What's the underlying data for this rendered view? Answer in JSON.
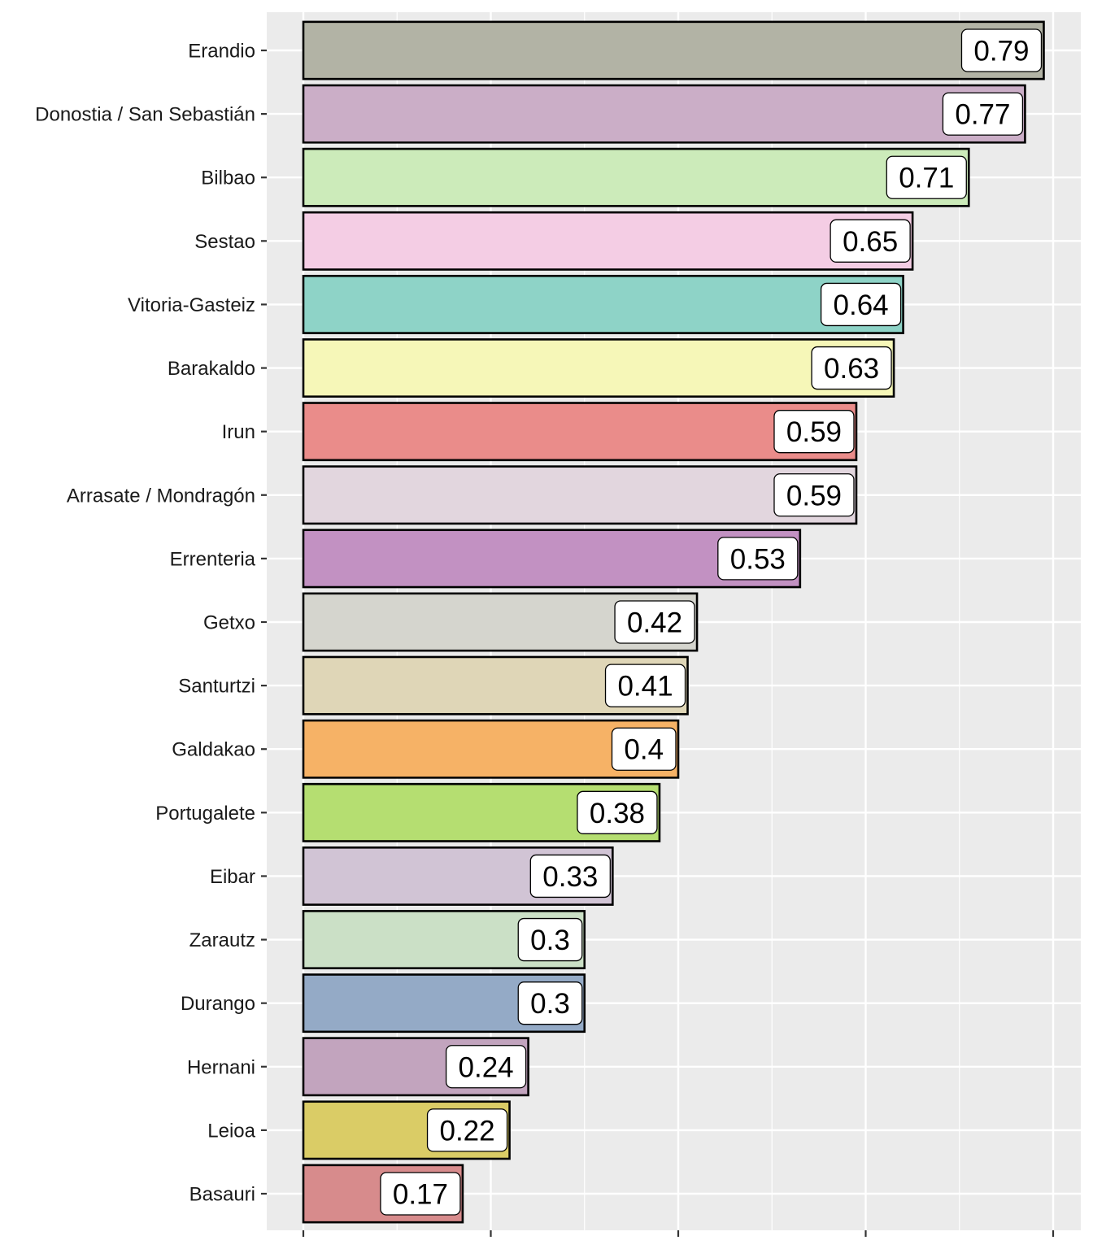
{
  "chart_data": {
    "type": "bar",
    "orientation": "horizontal",
    "title": "",
    "xlabel": "",
    "ylabel": "",
    "xlim": [
      0,
      0.8
    ],
    "x_major_ticks": [
      0,
      0.2,
      0.4,
      0.6,
      0.8
    ],
    "x_tick_labels_visible": false,
    "grid": true,
    "legend": "none",
    "categories": [
      "Erandio",
      "Donostia / San Sebastián",
      "Bilbao",
      "Sestao",
      "Vitoria-Gasteiz",
      "Barakaldo",
      "Irun",
      "Arrasate / Mondragón",
      "Errenteria",
      "Getxo",
      "Santurtzi",
      "Galdakao",
      "Portugalete",
      "Eibar",
      "Zarautz",
      "Durango",
      "Hernani",
      "Leioa",
      "Basauri"
    ],
    "values": [
      0.79,
      0.77,
      0.71,
      0.65,
      0.64,
      0.63,
      0.59,
      0.59,
      0.53,
      0.42,
      0.41,
      0.4,
      0.38,
      0.33,
      0.3,
      0.3,
      0.24,
      0.22,
      0.17
    ],
    "value_labels": [
      "0.79",
      "0.77",
      "0.71",
      "0.65",
      "0.64",
      "0.63",
      "0.59",
      "0.59",
      "0.53",
      "0.42",
      "0.41",
      "0.4",
      "0.38",
      "0.33",
      "0.3",
      "0.3",
      "0.24",
      "0.22",
      "0.17"
    ],
    "colors": [
      "#b2b3a5",
      "#cbaec7",
      "#ccebba",
      "#f4cde4",
      "#8ed3c7",
      "#f6f7b8",
      "#ea8c8a",
      "#e2d6de",
      "#c291c2",
      "#d5d5ce",
      "#dfd6b7",
      "#f6b266",
      "#b5de71",
      "#d1c4d5",
      "#cbe0c6",
      "#94aac6",
      "#c2a4be",
      "#dacc66",
      "#d78b8c"
    ],
    "panel_background": "#ebebeb",
    "gridline_color": "#ffffff",
    "bar_outline": "#000000"
  }
}
